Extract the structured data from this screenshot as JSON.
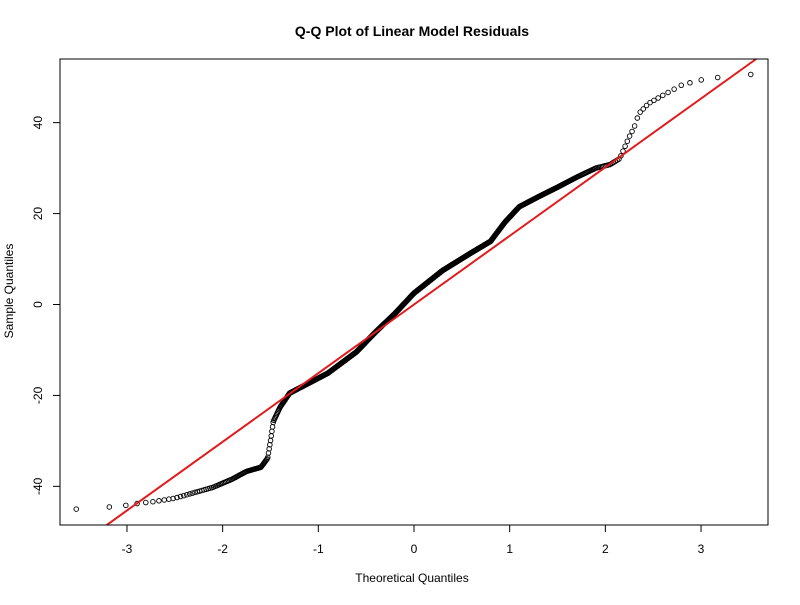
{
  "chart_data": {
    "type": "scatter",
    "title": "Q-Q Plot of Linear Model Residuals",
    "xlabel": "Theoretical Quantiles",
    "ylabel": "Sample Quantiles",
    "xlim": [
      -3.7,
      3.7
    ],
    "ylim": [
      -48.5,
      54
    ],
    "xticks": [
      -3,
      -2,
      -1,
      0,
      1,
      2,
      3
    ],
    "xtick_labels": [
      "-3",
      "-2",
      "-1",
      "0",
      "1",
      "2",
      "3"
    ],
    "yticks": [
      -40,
      -20,
      0,
      20,
      40
    ],
    "ytick_labels": [
      "-40",
      "-20",
      "0",
      "20",
      "40"
    ],
    "grid": false,
    "point_color": "#000000",
    "line_color": "#e31a1c",
    "reference_line": {
      "intercept": 0,
      "slope": 15.1
    },
    "quantile_profile": [
      [
        -3.53,
        -45.0
      ],
      [
        -3.22,
        -44.6
      ],
      [
        -3.05,
        -44.3
      ],
      [
        -2.9,
        -43.8
      ],
      [
        -2.7,
        -43.3
      ],
      [
        -2.5,
        -42.6
      ],
      [
        -2.3,
        -41.4
      ],
      [
        -2.1,
        -40.2
      ],
      [
        -1.9,
        -38.4
      ],
      [
        -1.75,
        -36.7
      ],
      [
        -1.6,
        -35.8
      ],
      [
        -1.53,
        -33.8
      ],
      [
        -1.5,
        -30.0
      ],
      [
        -1.47,
        -25.7
      ],
      [
        -1.4,
        -22.6
      ],
      [
        -1.3,
        -19.5
      ],
      [
        -1.1,
        -17.3
      ],
      [
        -0.9,
        -15.1
      ],
      [
        -0.6,
        -10.4
      ],
      [
        -0.4,
        -6.0
      ],
      [
        -0.2,
        -2.0
      ],
      [
        0.0,
        2.5
      ],
      [
        0.3,
        7.5
      ],
      [
        0.6,
        11.4
      ],
      [
        0.8,
        13.9
      ],
      [
        0.95,
        18.1
      ],
      [
        1.1,
        21.5
      ],
      [
        1.3,
        23.7
      ],
      [
        1.5,
        25.8
      ],
      [
        1.7,
        28.0
      ],
      [
        1.9,
        30.0
      ],
      [
        2.05,
        30.8
      ],
      [
        2.15,
        32.1
      ],
      [
        2.25,
        36.9
      ],
      [
        2.3,
        38.9
      ],
      [
        2.35,
        42.0
      ],
      [
        2.45,
        44.2
      ],
      [
        2.6,
        46.0
      ],
      [
        2.8,
        48.3
      ],
      [
        3.0,
        49.4
      ],
      [
        3.1,
        49.7
      ],
      [
        3.23,
        50.1
      ],
      [
        3.52,
        50.6
      ]
    ],
    "n_points": 1000
  }
}
